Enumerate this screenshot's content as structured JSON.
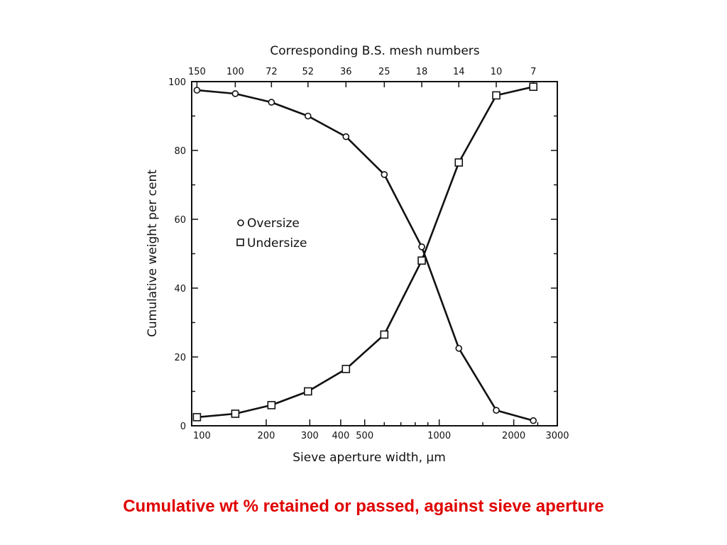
{
  "caption": "Cumulative wt % retained or passed, against sieve aperture",
  "colors": {
    "caption": "#e00000",
    "ink": "#111111"
  },
  "chart_data": {
    "type": "line",
    "title": "",
    "xlabel": "Sieve aperture width, μm",
    "ylabel": "Cumulative weight per cent",
    "x2label": "Corresponding B.S. mesh numbers",
    "x_scale": "log",
    "xlim": [
      100,
      3000
    ],
    "ylim": [
      0,
      100
    ],
    "x_ticks": [
      100,
      200,
      300,
      400,
      500,
      1000,
      2000,
      3000
    ],
    "x_tick_labels": [
      "100",
      "200",
      "300",
      "400",
      "500",
      "1000",
      "2000",
      "3000"
    ],
    "y_ticks": [
      0,
      20,
      40,
      60,
      80,
      100
    ],
    "y_tick_labels": [
      "0",
      "20",
      "40",
      "60",
      "80",
      "100"
    ],
    "top_ticks": [
      {
        "label": "150",
        "x": 105
      },
      {
        "label": "100",
        "x": 150
      },
      {
        "label": "72",
        "x": 210
      },
      {
        "label": "52",
        "x": 295
      },
      {
        "label": "36",
        "x": 420
      },
      {
        "label": "25",
        "x": 600
      },
      {
        "label": "18",
        "x": 850
      },
      {
        "label": "14",
        "x": 1200
      },
      {
        "label": "10",
        "x": 1700
      },
      {
        "label": "7",
        "x": 2400
      }
    ],
    "legend": {
      "position": "center-left",
      "entries": [
        "Oversize",
        "Undersize"
      ]
    },
    "series": [
      {
        "name": "Oversize",
        "marker": "circle",
        "x": [
          105,
          150,
          210,
          295,
          420,
          600,
          850,
          1200,
          1700,
          2400
        ],
        "y": [
          97.5,
          96.5,
          94,
          90,
          84,
          73,
          52,
          22.5,
          4.5,
          1.5
        ]
      },
      {
        "name": "Undersize",
        "marker": "square",
        "x": [
          105,
          150,
          210,
          295,
          420,
          600,
          850,
          1200,
          1700,
          2400
        ],
        "y": [
          2.5,
          3.5,
          6,
          10,
          16.5,
          26.5,
          48,
          76.5,
          96,
          98.5
        ]
      }
    ]
  }
}
